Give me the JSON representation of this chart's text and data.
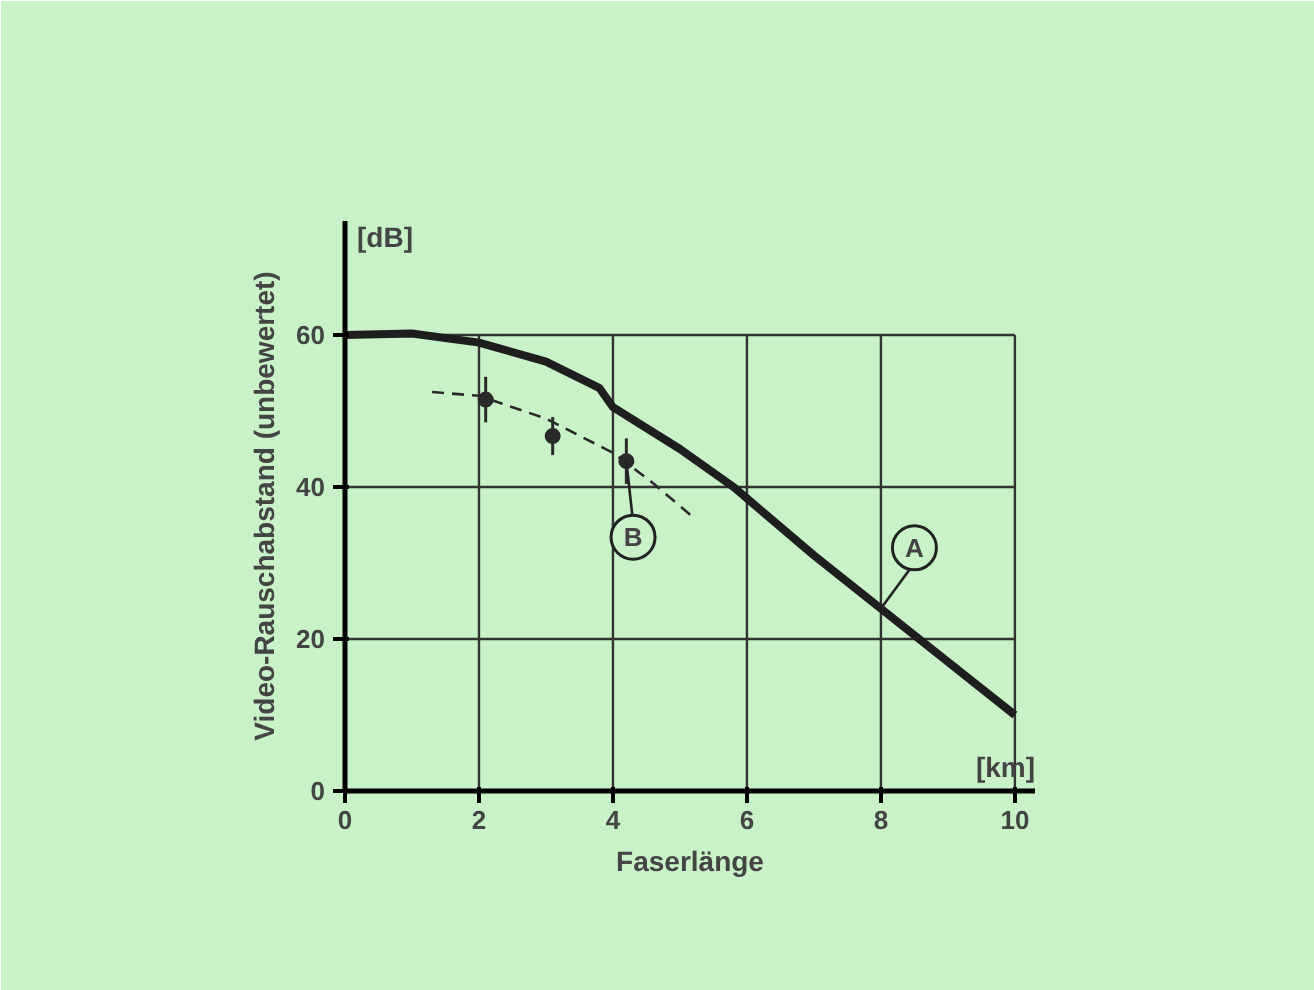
{
  "chart_data": {
    "type": "line",
    "xlabel": "Faserlänge",
    "ylabel": "Video-Rauschabstand (unbewertet)",
    "annotations": [
      "[dB]",
      "[km]"
    ],
    "xlim": [
      0,
      10.3
    ],
    "ylim": [
      0,
      75
    ],
    "xticks": [
      0,
      2,
      4,
      6,
      8,
      10
    ],
    "yticks": [
      0,
      20,
      40,
      60
    ],
    "grid": true,
    "series": [
      {
        "name": "A",
        "color": "#1e1e1e",
        "x": [
          0,
          1,
          2,
          3,
          3.8,
          4,
          5,
          5.8,
          6,
          7,
          8,
          9,
          10
        ],
        "values": [
          60,
          60.2,
          59,
          56.5,
          53,
          50.5,
          45,
          40,
          38.5,
          31,
          24,
          17,
          10
        ]
      },
      {
        "color": "#2a2a2a",
        "line_style": "dashed",
        "x": [
          1.3,
          2,
          3,
          4,
          4.6,
          5.2
        ],
        "values": [
          52.5,
          52,
          49,
          44.5,
          40.5,
          36
        ]
      },
      {
        "name": "B",
        "type": "scatter",
        "color": "#2a2a2a",
        "x": [
          2.1,
          3.1,
          4.2
        ],
        "values": [
          51.5,
          46.7,
          43.4
        ],
        "errors": [
          3,
          2.5,
          3
        ]
      }
    ]
  }
}
